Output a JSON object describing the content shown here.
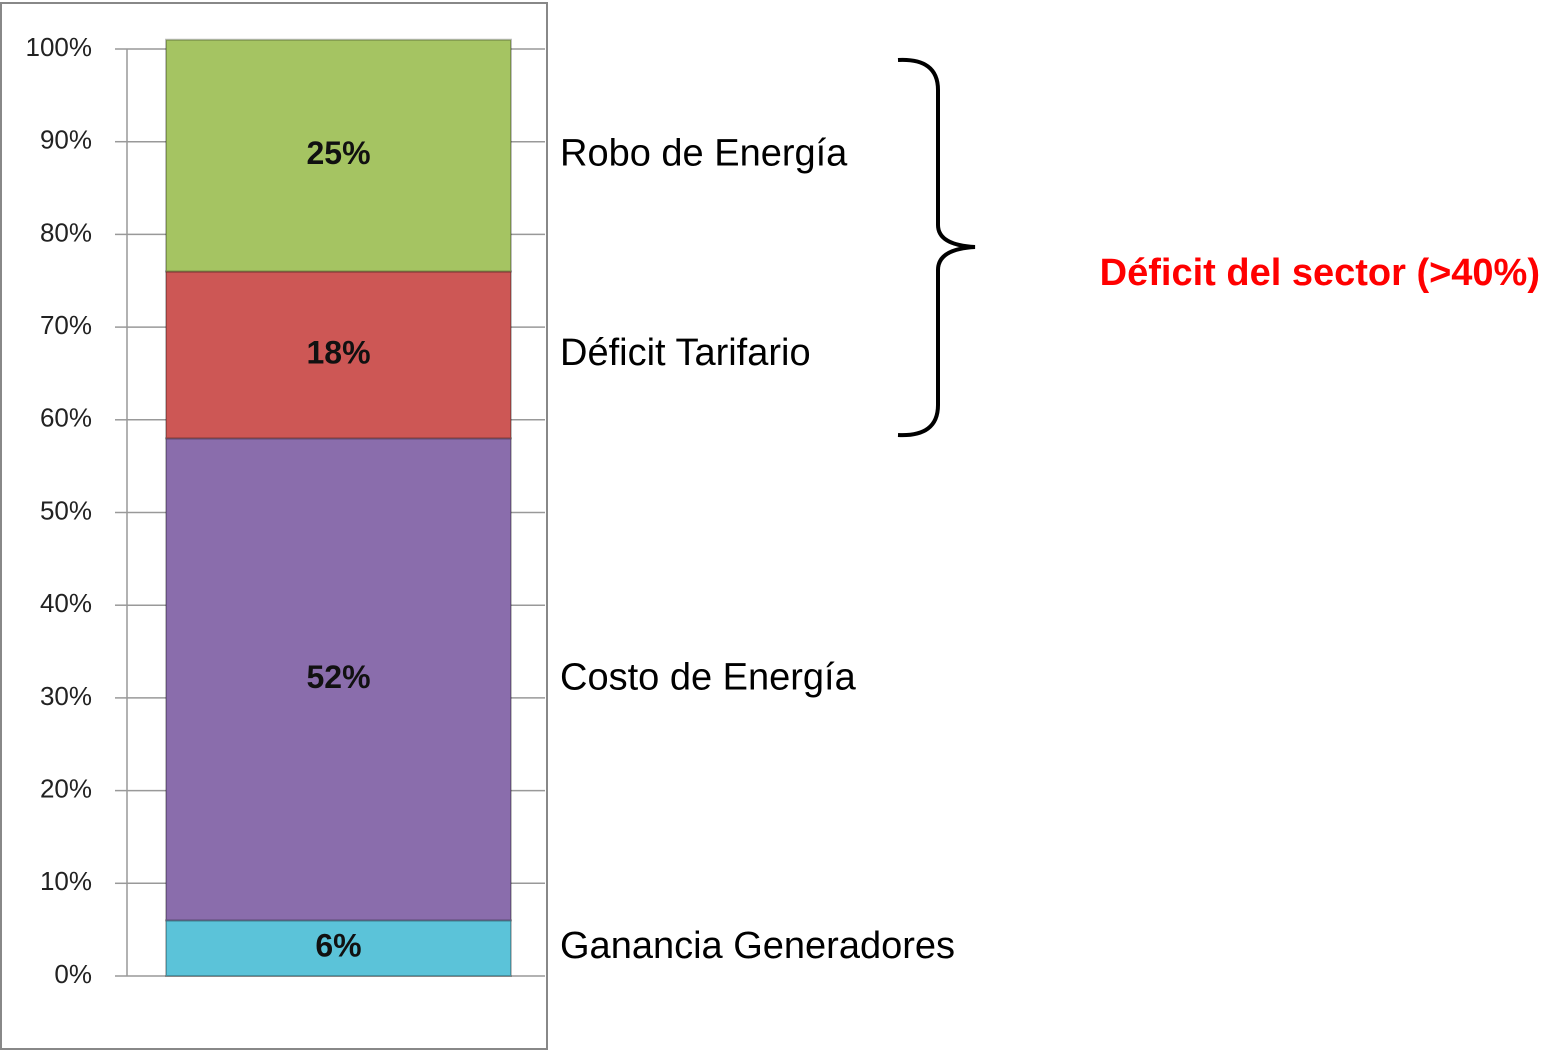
{
  "chart_data": {
    "type": "stacked_bar",
    "categories": [
      null
    ],
    "series": [
      {
        "name": "Ganancia Generadores",
        "color": "#5bc3d9",
        "values": [
          6
        ],
        "value_labels": [
          "6%"
        ]
      },
      {
        "name": "Costo de Energía",
        "color": "#8a6dac",
        "values": [
          52
        ],
        "value_labels": [
          "52%"
        ]
      },
      {
        "name": "Déficit Tarifario",
        "color": "#cd5755",
        "values": [
          18
        ],
        "value_labels": [
          "18%"
        ]
      },
      {
        "name": "Robo de Energía",
        "color": "#a5c462",
        "values": [
          25
        ],
        "value_labels": [
          "25%"
        ]
      }
    ],
    "ylim": [
      0,
      100
    ],
    "yticks": [
      {
        "value": 0,
        "label": "0%"
      },
      {
        "value": 10,
        "label": "10%"
      },
      {
        "value": 20,
        "label": "20%"
      },
      {
        "value": 30,
        "label": "30%"
      },
      {
        "value": 40,
        "label": "40%"
      },
      {
        "value": 50,
        "label": "50%"
      },
      {
        "value": 60,
        "label": "60%"
      },
      {
        "value": 70,
        "label": "70%"
      },
      {
        "value": 80,
        "label": "80%"
      },
      {
        "value": 90,
        "label": "90%"
      },
      {
        "value": 100,
        "label": "100%"
      }
    ],
    "grid": true,
    "annotation": "Déficit del sector (>40%)",
    "annotation_color": "#ff0000"
  }
}
